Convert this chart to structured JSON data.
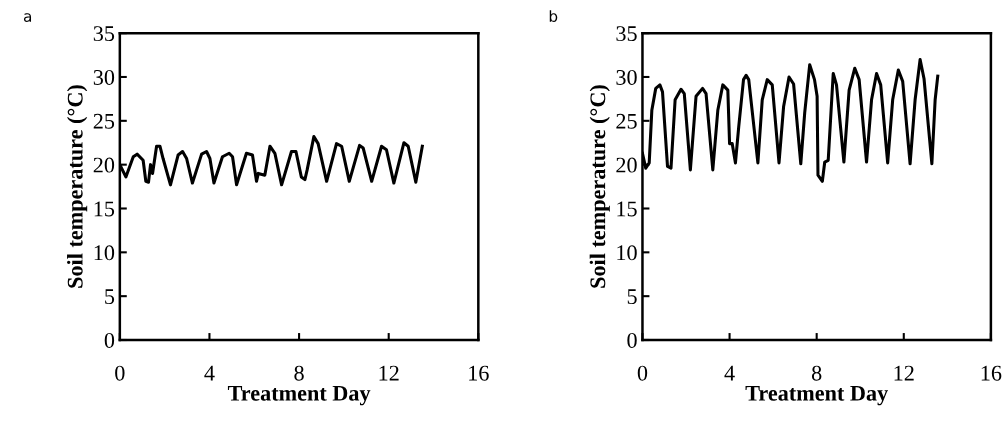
{
  "chart_data": [
    {
      "type": "line",
      "title": "a",
      "xlabel": "Treatment Day",
      "ylabel": "Soil temperature (°C)",
      "xlim": [
        0,
        16
      ],
      "xticks": [
        0,
        4,
        8,
        12,
        16
      ],
      "ylim": [
        0,
        35
      ],
      "yticks": [
        0,
        5,
        10,
        15,
        20,
        25,
        30,
        35
      ],
      "grid": false,
      "legend": false,
      "line_style": "solid",
      "marker": "none",
      "series": [
        {
          "color": "#000000",
          "x": [
            0,
            0.27,
            0.6,
            0.77,
            1.04,
            1.16,
            1.28,
            1.37,
            1.46,
            1.64,
            1.79,
            1.93,
            2.26,
            2.6,
            2.8,
            2.98,
            3.24,
            3.65,
            3.87,
            4.02,
            4.2,
            4.58,
            4.88,
            5.03,
            5.21,
            5.65,
            5.92,
            6.1,
            6.18,
            6.47,
            6.7,
            6.92,
            7.22,
            7.66,
            7.86,
            8.1,
            8.26,
            8.36,
            8.66,
            8.85,
            9.23,
            9.67,
            9.9,
            10.24,
            10.7,
            10.86,
            11.24,
            11.68,
            11.9,
            12.23,
            12.68,
            12.87,
            13.21,
            13.5
          ],
          "values": [
            20,
            18.6,
            20.9,
            21.2,
            20.5,
            18.1,
            18,
            20,
            19,
            22.1,
            22.1,
            20.7,
            17.7,
            21.1,
            21.5,
            20.7,
            17.9,
            21.2,
            21.5,
            20.7,
            17.9,
            20.9,
            21.3,
            20.9,
            17.7,
            21.3,
            21.1,
            18.1,
            19,
            18.8,
            22.1,
            21.3,
            17.7,
            21.5,
            21.5,
            18.6,
            18.3,
            19.4,
            23.2,
            22.4,
            18.1,
            22.4,
            22.1,
            18.1,
            22.2,
            21.9,
            18.1,
            22.1,
            21.7,
            17.9,
            22.5,
            22.1,
            18,
            22.1
          ]
        }
      ]
    },
    {
      "type": "line",
      "title": "b",
      "xlabel": "Treatment Day",
      "ylabel": "Soil temperature (°C)",
      "xlim": [
        0,
        16
      ],
      "xticks": [
        0,
        4,
        8,
        12,
        16
      ],
      "ylim": [
        0,
        35
      ],
      "yticks": [
        0,
        5,
        10,
        15,
        20,
        25,
        30,
        35
      ],
      "grid": false,
      "legend": false,
      "line_style": "solid",
      "marker": "none",
      "series": [
        {
          "color": "#000000",
          "x": [
            0,
            0.15,
            0.31,
            0.43,
            0.61,
            0.8,
            0.92,
            1.15,
            1.31,
            1.5,
            1.77,
            1.92,
            2.2,
            2.46,
            2.76,
            2.92,
            3.23,
            3.46,
            3.69,
            3.92,
            4.0,
            4.12,
            4.27,
            4.42,
            4.64,
            4.76,
            4.88,
            5.3,
            5.5,
            5.73,
            5.96,
            6.27,
            6.48,
            6.73,
            6.94,
            7.27,
            7.45,
            7.68,
            7.9,
            8.02,
            8.06,
            8.26,
            8.37,
            8.53,
            8.76,
            8.91,
            9.25,
            9.49,
            9.75,
            9.95,
            10.29,
            10.52,
            10.75,
            10.94,
            11.26,
            11.49,
            11.75,
            11.95,
            12.29,
            12.52,
            12.75,
            12.93,
            13.29,
            13.44,
            13.56
          ],
          "values": [
            21.3,
            19.6,
            20.2,
            26.2,
            28.7,
            29.1,
            28.3,
            19.8,
            19.6,
            27.4,
            28.6,
            28.1,
            19.4,
            27.8,
            28.7,
            28.1,
            19.4,
            26.2,
            29.1,
            28.5,
            22.4,
            22.4,
            20.2,
            24.3,
            29.7,
            30.2,
            29.7,
            20.2,
            27.4,
            29.7,
            29.1,
            20.2,
            26.6,
            30,
            29.2,
            20.1,
            25.9,
            31.4,
            29.7,
            27.8,
            18.8,
            18.1,
            20.3,
            20.5,
            30.4,
            29.1,
            20.3,
            28.5,
            31,
            29.7,
            20.3,
            27.4,
            30.4,
            29.1,
            20.2,
            27.4,
            30.8,
            29.5,
            20.1,
            27.4,
            32,
            29.8,
            20.1,
            27.4,
            30.1
          ]
        }
      ]
    }
  ]
}
